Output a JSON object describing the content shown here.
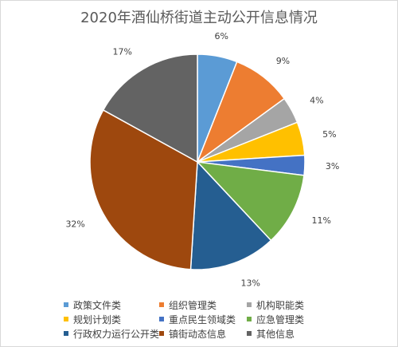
{
  "chart_data": {
    "type": "pie",
    "title": "2020年酒仙桥街道主动公开信息情况",
    "slices": [
      {
        "name": "政策文件类",
        "value": 6,
        "label": "6%",
        "color": "#5b9bd5"
      },
      {
        "name": "组织管理类",
        "value": 9,
        "label": "9%",
        "color": "#ed7d31"
      },
      {
        "name": "机构职能类",
        "value": 4,
        "label": "4%",
        "color": "#a5a5a5"
      },
      {
        "name": "规划计划类",
        "value": 5,
        "label": "5%",
        "color": "#ffc000"
      },
      {
        "name": "重点民生领域类",
        "value": 3,
        "label": "3%",
        "color": "#4472c4"
      },
      {
        "name": "应急管理类",
        "value": 11,
        "label": "11%",
        "color": "#70ad47"
      },
      {
        "name": "行政权力运行公开类",
        "value": 13,
        "label": "13%",
        "color": "#255e91"
      },
      {
        "name": "镇街动态信息",
        "value": 32,
        "label": "32%",
        "color": "#9e480e"
      },
      {
        "name": "其他信息",
        "value": 17,
        "label": "17%",
        "color": "#636363"
      }
    ],
    "legend_position": "bottom"
  }
}
